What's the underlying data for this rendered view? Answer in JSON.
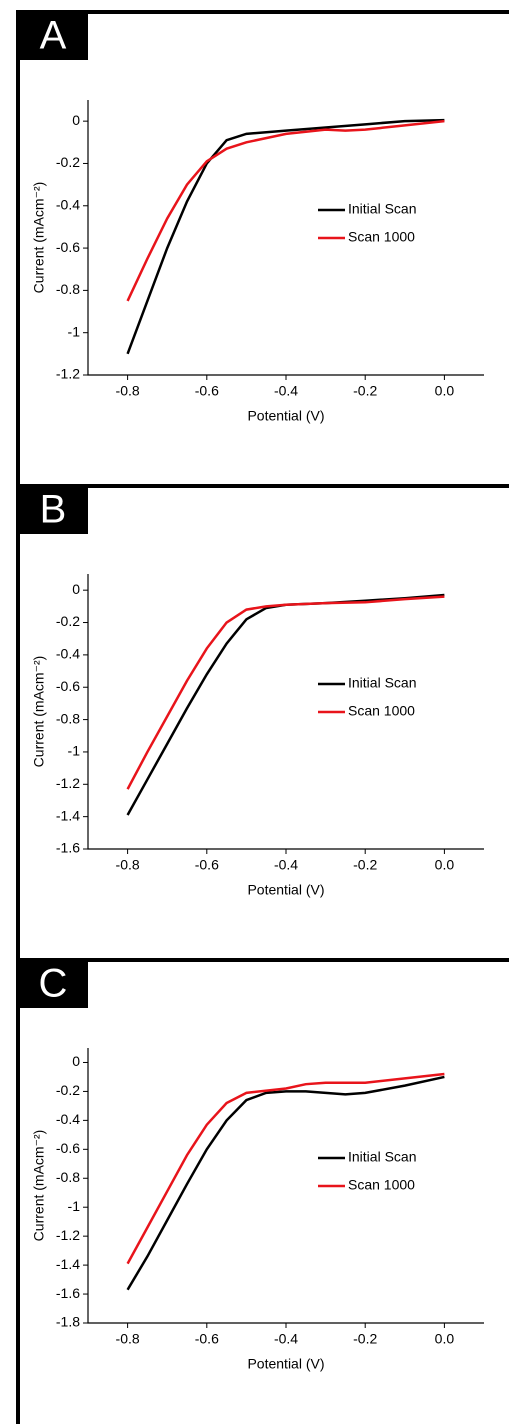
{
  "chart_data": [
    {
      "type": "line",
      "panel_label": "A",
      "xlabel": "Potential (V)",
      "ylabel": "Current (mAcm⁻²)",
      "xlim": [
        -0.9,
        0.1
      ],
      "ylim": [
        -1.2,
        0.1
      ],
      "xticks": [
        -0.8,
        -0.6,
        -0.4,
        -0.2,
        {
          "value": 0,
          "label": "0.0"
        }
      ],
      "yticks": [
        0,
        -0.2,
        -0.4,
        -0.6,
        -0.8,
        -1,
        -1.2
      ],
      "series": [
        {
          "name": "Initial Scan",
          "color": "#000000",
          "x": [
            -0.8,
            -0.75,
            -0.7,
            -0.65,
            -0.6,
            -0.55,
            -0.5,
            -0.4,
            -0.3,
            -0.2,
            -0.1,
            0
          ],
          "values": [
            -1.1,
            -0.85,
            -0.6,
            -0.38,
            -0.2,
            -0.09,
            -0.06,
            -0.045,
            -0.03,
            -0.015,
            0,
            0.005
          ]
        },
        {
          "name": "Scan 1000",
          "color": "#e8141b",
          "x": [
            -0.8,
            -0.75,
            -0.7,
            -0.65,
            -0.6,
            -0.55,
            -0.5,
            -0.4,
            -0.3,
            -0.25,
            -0.2,
            -0.1,
            0
          ],
          "values": [
            -0.85,
            -0.65,
            -0.46,
            -0.3,
            -0.19,
            -0.13,
            -0.1,
            -0.06,
            -0.04,
            -0.045,
            -0.04,
            -0.02,
            0
          ]
        }
      ]
    },
    {
      "type": "line",
      "panel_label": "B",
      "xlabel": "Potential (V)",
      "ylabel": "Current (mAcm⁻²)",
      "xlim": [
        -0.9,
        0.1
      ],
      "ylim": [
        -1.6,
        0.1
      ],
      "xticks": [
        -0.8,
        -0.6,
        -0.4,
        -0.2,
        {
          "value": 0,
          "label": "0.0"
        }
      ],
      "yticks": [
        0,
        -0.2,
        -0.4,
        -0.6,
        -0.8,
        -1,
        -1.2,
        -1.4,
        -1.6
      ],
      "series": [
        {
          "name": "Initial Scan",
          "color": "#000000",
          "x": [
            -0.8,
            -0.75,
            -0.7,
            -0.65,
            -0.6,
            -0.55,
            -0.5,
            -0.45,
            -0.4,
            -0.3,
            -0.2,
            -0.1,
            0
          ],
          "values": [
            -1.39,
            -1.17,
            -0.95,
            -0.73,
            -0.52,
            -0.33,
            -0.18,
            -0.11,
            -0.09,
            -0.08,
            -0.065,
            -0.05,
            -0.03
          ]
        },
        {
          "name": "Scan 1000",
          "color": "#e8141b",
          "x": [
            -0.8,
            -0.75,
            -0.7,
            -0.65,
            -0.6,
            -0.55,
            -0.5,
            -0.45,
            -0.4,
            -0.3,
            -0.2,
            -0.1,
            0
          ],
          "values": [
            -1.23,
            -1.0,
            -0.78,
            -0.56,
            -0.36,
            -0.2,
            -0.12,
            -0.1,
            -0.09,
            -0.08,
            -0.075,
            -0.055,
            -0.04
          ]
        }
      ]
    },
    {
      "type": "line",
      "panel_label": "C",
      "xlabel": "Potential (V)",
      "ylabel": "Current (mAcm⁻²)",
      "xlim": [
        -0.9,
        0.1
      ],
      "ylim": [
        -1.8,
        0.1
      ],
      "xticks": [
        -0.8,
        -0.6,
        -0.4,
        -0.2,
        {
          "value": 0,
          "label": "0.0"
        }
      ],
      "yticks": [
        0,
        -0.2,
        -0.4,
        -0.6,
        -0.8,
        -1,
        -1.2,
        -1.4,
        -1.6,
        -1.8
      ],
      "series": [
        {
          "name": "Initial Scan",
          "color": "#000000",
          "x": [
            -0.8,
            -0.75,
            -0.7,
            -0.65,
            -0.6,
            -0.55,
            -0.5,
            -0.45,
            -0.4,
            -0.35,
            -0.3,
            -0.25,
            -0.2,
            -0.1,
            0
          ],
          "values": [
            -1.57,
            -1.34,
            -1.09,
            -0.84,
            -0.6,
            -0.4,
            -0.26,
            -0.21,
            -0.2,
            -0.2,
            -0.21,
            -0.22,
            -0.21,
            -0.16,
            -0.1
          ]
        },
        {
          "name": "Scan 1000",
          "color": "#e8141b",
          "x": [
            -0.8,
            -0.75,
            -0.7,
            -0.65,
            -0.6,
            -0.55,
            -0.5,
            -0.4,
            -0.35,
            -0.3,
            -0.2,
            -0.1,
            0
          ],
          "values": [
            -1.39,
            -1.14,
            -0.89,
            -0.64,
            -0.43,
            -0.28,
            -0.21,
            -0.18,
            -0.15,
            -0.14,
            -0.14,
            -0.11,
            -0.08
          ]
        }
      ]
    }
  ]
}
